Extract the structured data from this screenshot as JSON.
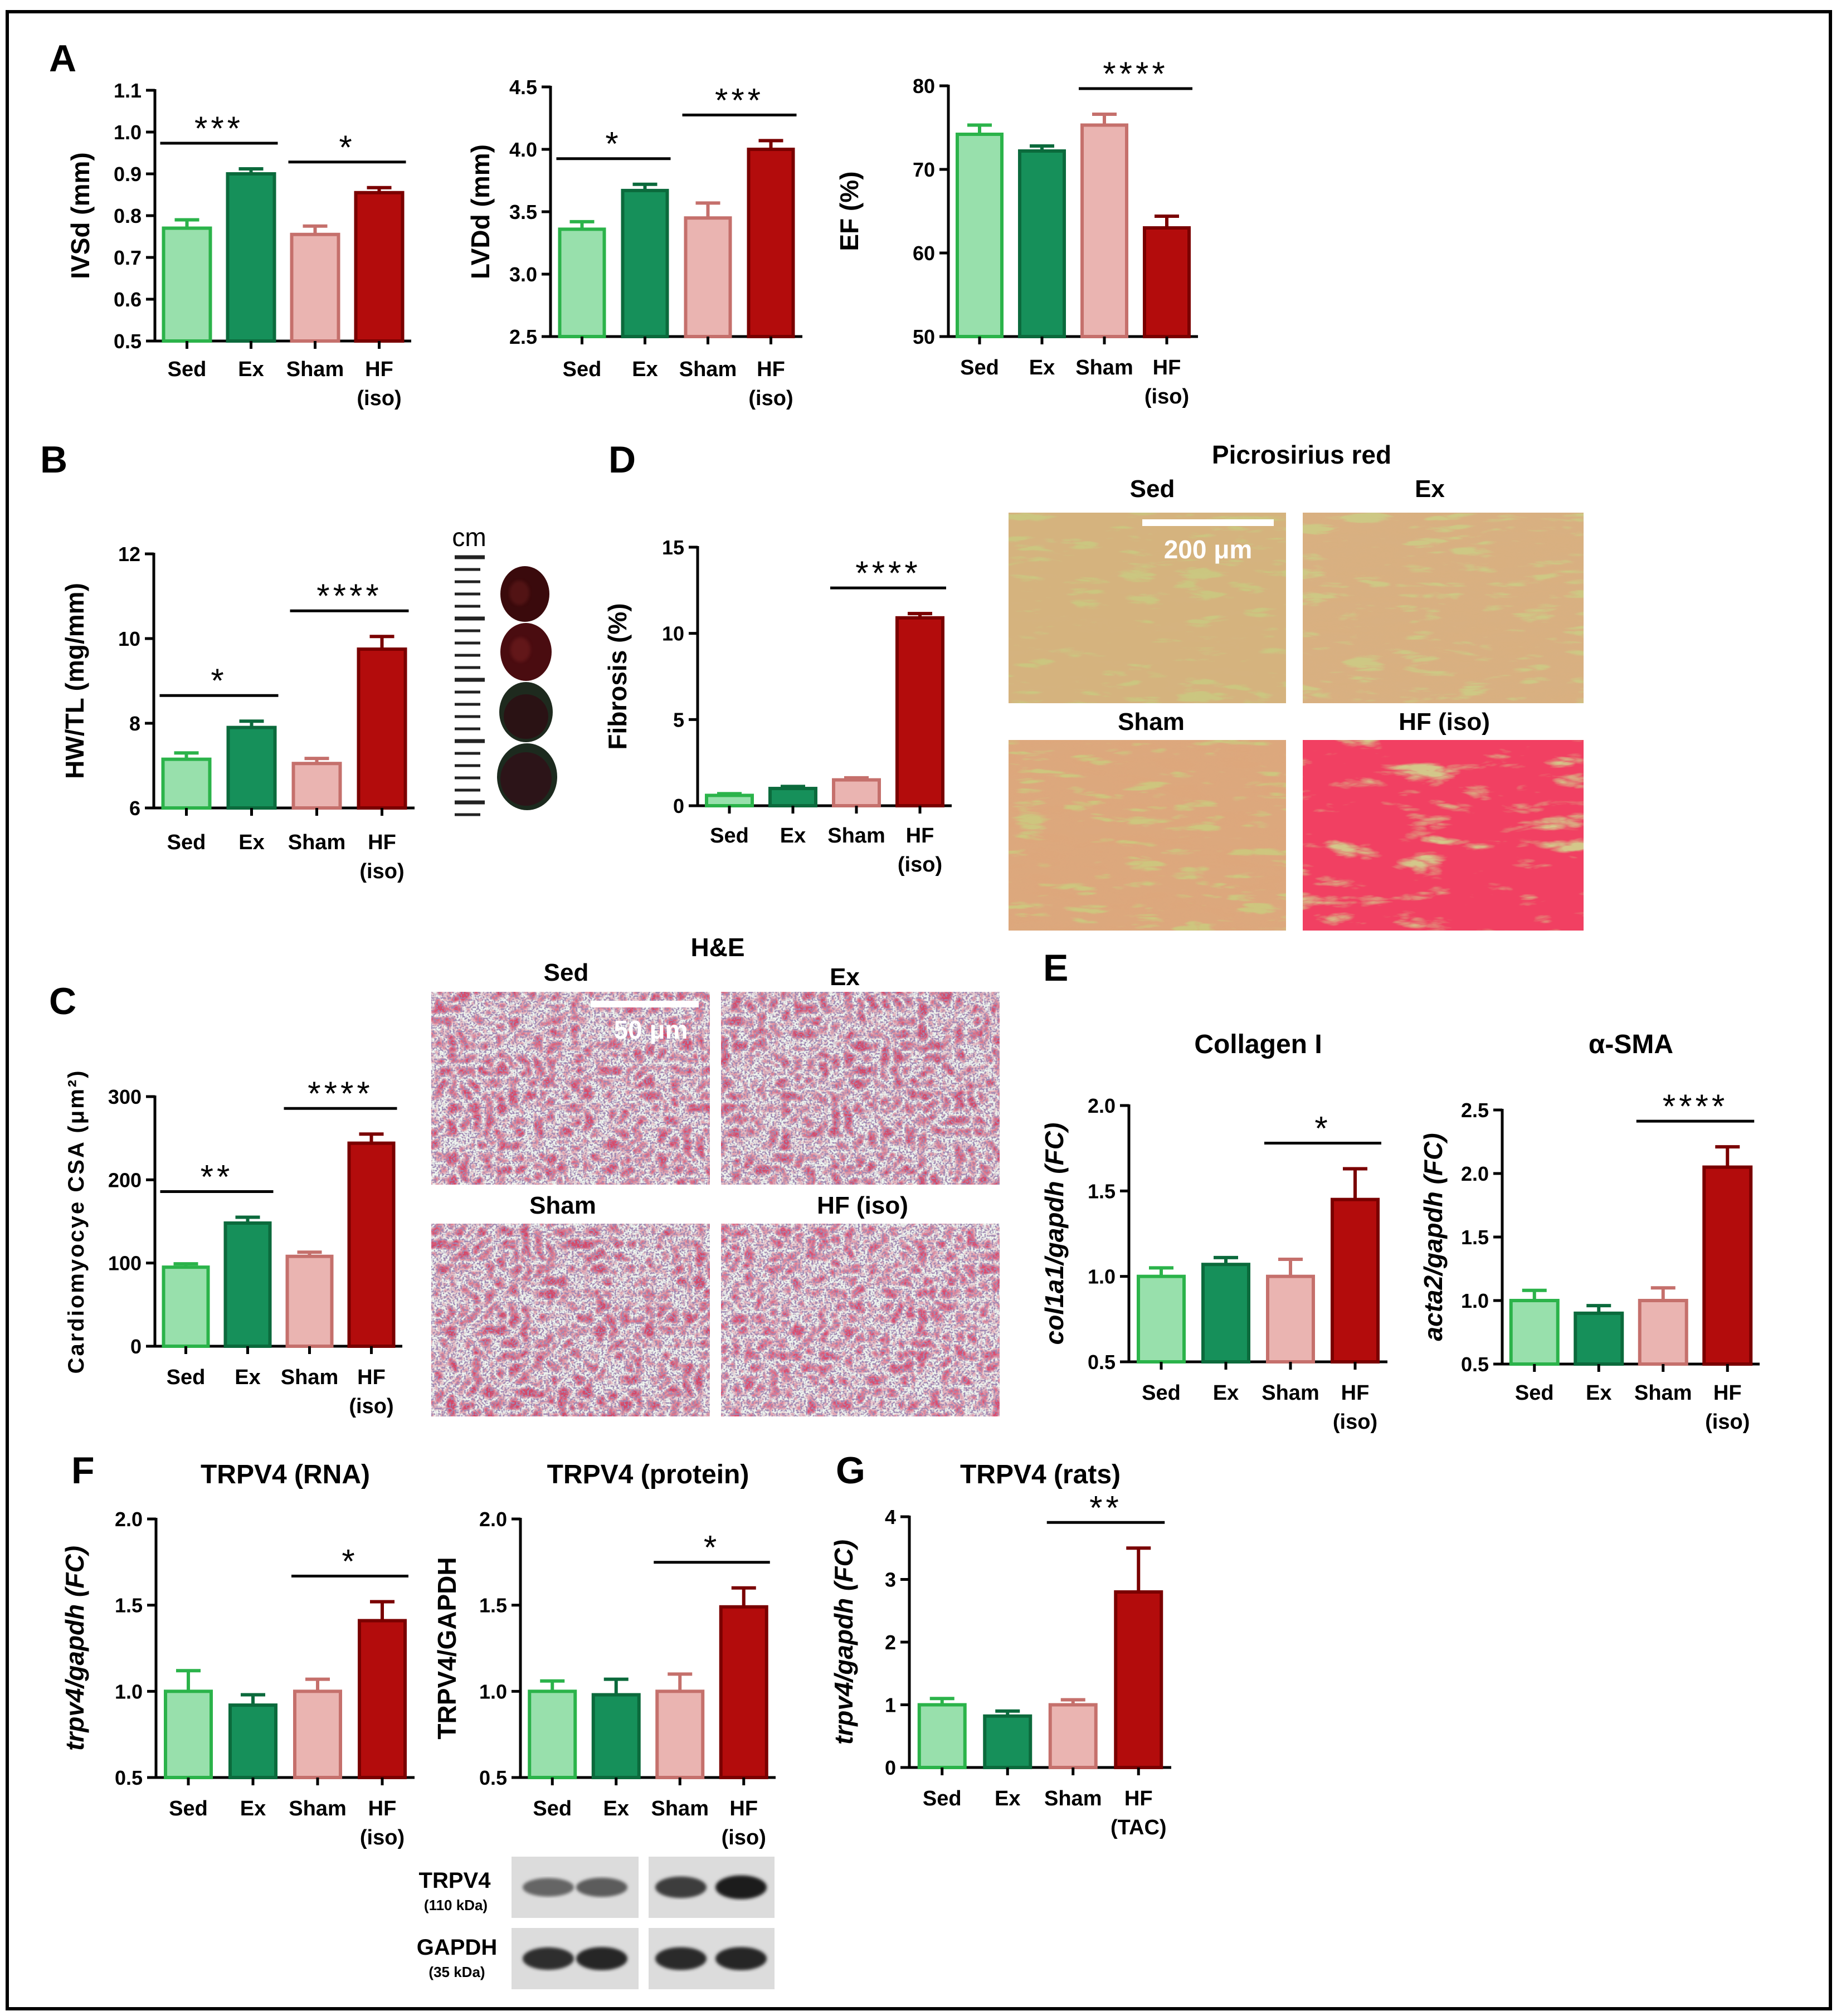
{
  "colors": {
    "sed_fill": "#98e0ac",
    "sed_edge": "#2bb34a",
    "ex_fill": "#16905a",
    "ex_edge": "#0b6a3c",
    "sham_fill": "#eab4b1",
    "sham_edge": "#c5706c",
    "hf_fill": "#b30c0c",
    "hf_edge": "#7a0000"
  },
  "panel_letters": [
    "A",
    "B",
    "C",
    "D",
    "E",
    "F",
    "G"
  ],
  "chart_data": [
    {
      "id": "ivsd",
      "type": "bar",
      "panel": "A",
      "title": "",
      "ylabel": "IVSd (mm)",
      "ylim": [
        0.5,
        1.1
      ],
      "yticks": [
        "0.5",
        "0.6",
        "0.7",
        "0.8",
        "0.9",
        "1.0",
        "1.1"
      ],
      "categories": [
        "Sed",
        "Ex",
        "Sham",
        "HF (iso)"
      ],
      "values": [
        0.77,
        0.9,
        0.755,
        0.855
      ],
      "errors": [
        0.02,
        0.012,
        0.02,
        0.012
      ],
      "significance": [
        {
          "from": 0,
          "to": 1,
          "label": "***"
        },
        {
          "from": 2,
          "to": 3,
          "label": "*"
        }
      ]
    },
    {
      "id": "lvdd",
      "type": "bar",
      "panel": "A",
      "title": "",
      "ylabel": "LVDd (mm)",
      "ylim": [
        2.5,
        4.5
      ],
      "yticks": [
        "2.5",
        "3.0",
        "3.5",
        "4.0",
        "4.5"
      ],
      "categories": [
        "Sed",
        "Ex",
        "Sham",
        "HF (iso)"
      ],
      "values": [
        3.36,
        3.67,
        3.45,
        4.0
      ],
      "errors": [
        0.06,
        0.05,
        0.12,
        0.07
      ],
      "significance": [
        {
          "from": 0,
          "to": 1,
          "label": "*"
        },
        {
          "from": 2,
          "to": 3,
          "label": "***"
        }
      ]
    },
    {
      "id": "ef",
      "type": "bar",
      "panel": "A",
      "title": "",
      "ylabel": "EF (%)",
      "ylim": [
        50,
        80
      ],
      "yticks": [
        "50",
        "60",
        "70",
        "80"
      ],
      "categories": [
        "Sed",
        "Ex",
        "Sham",
        "HF (iso)"
      ],
      "values": [
        74.2,
        72.2,
        75.3,
        63.0
      ],
      "errors": [
        1.1,
        0.6,
        1.3,
        1.4
      ],
      "significance": [
        {
          "from": 2,
          "to": 3,
          "label": "****"
        }
      ]
    },
    {
      "id": "hwtl",
      "type": "bar",
      "panel": "B",
      "title": "",
      "ylabel": "HW/TL (mg/mm)",
      "ylim": [
        6,
        12
      ],
      "yticks": [
        "6",
        "8",
        "10",
        "12"
      ],
      "categories": [
        "Sed",
        "Ex",
        "Sham",
        "HF (iso)"
      ],
      "values": [
        7.15,
        7.9,
        7.05,
        9.75
      ],
      "errors": [
        0.15,
        0.15,
        0.12,
        0.3
      ],
      "significance": [
        {
          "from": 0,
          "to": 1,
          "label": "*"
        },
        {
          "from": 2,
          "to": 3,
          "label": "****"
        }
      ]
    },
    {
      "id": "csa",
      "type": "bar",
      "panel": "C",
      "title": "",
      "ylabel": "Cardiomyocye CSA (μm²)",
      "ylim": [
        0,
        300
      ],
      "yticks": [
        "0",
        "100",
        "200",
        "300"
      ],
      "categories": [
        "Sed",
        "Ex",
        "Sham",
        "HF (iso)"
      ],
      "values": [
        95,
        148,
        108,
        244
      ],
      "errors": [
        4,
        7,
        5,
        11
      ],
      "significance": [
        {
          "from": 0,
          "to": 1,
          "label": "**"
        },
        {
          "from": 2,
          "to": 3,
          "label": "****"
        }
      ]
    },
    {
      "id": "fibrosis",
      "type": "bar",
      "panel": "D",
      "title": "",
      "ylabel": "Fibrosis (%)",
      "ylim": [
        0,
        15
      ],
      "yticks": [
        "0",
        "5",
        "10",
        "15"
      ],
      "categories": [
        "Sed",
        "Ex",
        "Sham",
        "HF (iso)"
      ],
      "values": [
        0.6,
        1.0,
        1.5,
        10.9
      ],
      "errors": [
        0.1,
        0.12,
        0.12,
        0.25
      ],
      "significance": [
        {
          "from": 2,
          "to": 3,
          "label": "****"
        }
      ]
    },
    {
      "id": "col1a1",
      "type": "bar",
      "panel": "E",
      "title": "Collagen I",
      "ylabel": "col1a1/gapdh (FC)",
      "ylim": [
        0.5,
        2.0
      ],
      "yticks": [
        "0.5",
        "1.0",
        "1.5",
        "2.0"
      ],
      "categories": [
        "Sed",
        "Ex",
        "Sham",
        "HF (iso)"
      ],
      "values": [
        1.0,
        1.07,
        1.0,
        1.45
      ],
      "errors": [
        0.05,
        0.04,
        0.1,
        0.18
      ],
      "significance": [
        {
          "from": 2,
          "to": 3,
          "label": "*"
        }
      ]
    },
    {
      "id": "acta2",
      "type": "bar",
      "panel": "E",
      "title": "α-SMA",
      "ylabel": "acta2/gapdh (FC)",
      "ylim": [
        0.5,
        2.5
      ],
      "yticks": [
        "0.5",
        "1.0",
        "1.5",
        "2.0",
        "2.5"
      ],
      "categories": [
        "Sed",
        "Ex",
        "Sham",
        "HF (iso)"
      ],
      "values": [
        1.0,
        0.9,
        1.0,
        2.05
      ],
      "errors": [
        0.08,
        0.06,
        0.1,
        0.16
      ],
      "significance": [
        {
          "from": 2,
          "to": 3,
          "label": "****"
        }
      ]
    },
    {
      "id": "trpv4_rna",
      "type": "bar",
      "panel": "F",
      "title": "TRPV4 (RNA)",
      "ylabel": "trpv4/gapdh (FC)",
      "ylim": [
        0.5,
        2.0
      ],
      "yticks": [
        "0.5",
        "1.0",
        "1.5",
        "2.0"
      ],
      "categories": [
        "Sed",
        "Ex",
        "Sham",
        "HF (iso)"
      ],
      "values": [
        1.0,
        0.92,
        1.0,
        1.41
      ],
      "errors": [
        0.12,
        0.06,
        0.07,
        0.11
      ],
      "significance": [
        {
          "from": 2,
          "to": 3,
          "label": "*"
        }
      ]
    },
    {
      "id": "trpv4_protein",
      "type": "bar",
      "panel": "F",
      "title": "TRPV4 (protein)",
      "ylabel": "TRPV4/GAPDH",
      "ylim": [
        0.5,
        2.0
      ],
      "yticks": [
        "0.5",
        "1.0",
        "1.5",
        "2.0"
      ],
      "categories": [
        "Sed",
        "Ex",
        "Sham",
        "HF (iso)"
      ],
      "values": [
        1.0,
        0.98,
        1.0,
        1.49
      ],
      "errors": [
        0.06,
        0.09,
        0.1,
        0.11
      ],
      "significance": [
        {
          "from": 2,
          "to": 3,
          "label": "*"
        }
      ]
    },
    {
      "id": "trpv4_rats",
      "type": "bar",
      "panel": "G",
      "title": "TRPV4 (rats)",
      "ylabel": "trpv4/gapdh (FC)",
      "ylim": [
        0,
        4
      ],
      "yticks": [
        "0",
        "1",
        "2",
        "3",
        "4"
      ],
      "categories": [
        "Sed",
        "Ex",
        "Sham",
        "HF (TAC)"
      ],
      "values": [
        1.0,
        0.82,
        1.0,
        2.8
      ],
      "errors": [
        0.1,
        0.08,
        0.08,
        0.7
      ],
      "significance": [
        {
          "from": 2,
          "to": 3,
          "label": "**"
        }
      ]
    }
  ],
  "heart_photo": {
    "unit_label": "cm"
  },
  "picrosirius": {
    "title": "Picrosirius red",
    "labels": [
      "Sed",
      "Ex",
      "Sham",
      "HF (iso)"
    ],
    "scale_bar": "200 μm"
  },
  "he_stain": {
    "title": "H&E",
    "labels": [
      "Sed",
      "Ex",
      "Sham",
      "HF (iso)"
    ],
    "scale_bar": "50 μm"
  },
  "western_blot": {
    "bands": [
      {
        "name": "TRPV4",
        "size": "(110 kDa)",
        "intensity": [
          0.55,
          0.6,
          0.78,
          0.95
        ]
      },
      {
        "name": "GAPDH",
        "size": "(35 kDa)",
        "intensity": [
          0.85,
          0.9,
          0.88,
          0.9
        ]
      }
    ]
  }
}
